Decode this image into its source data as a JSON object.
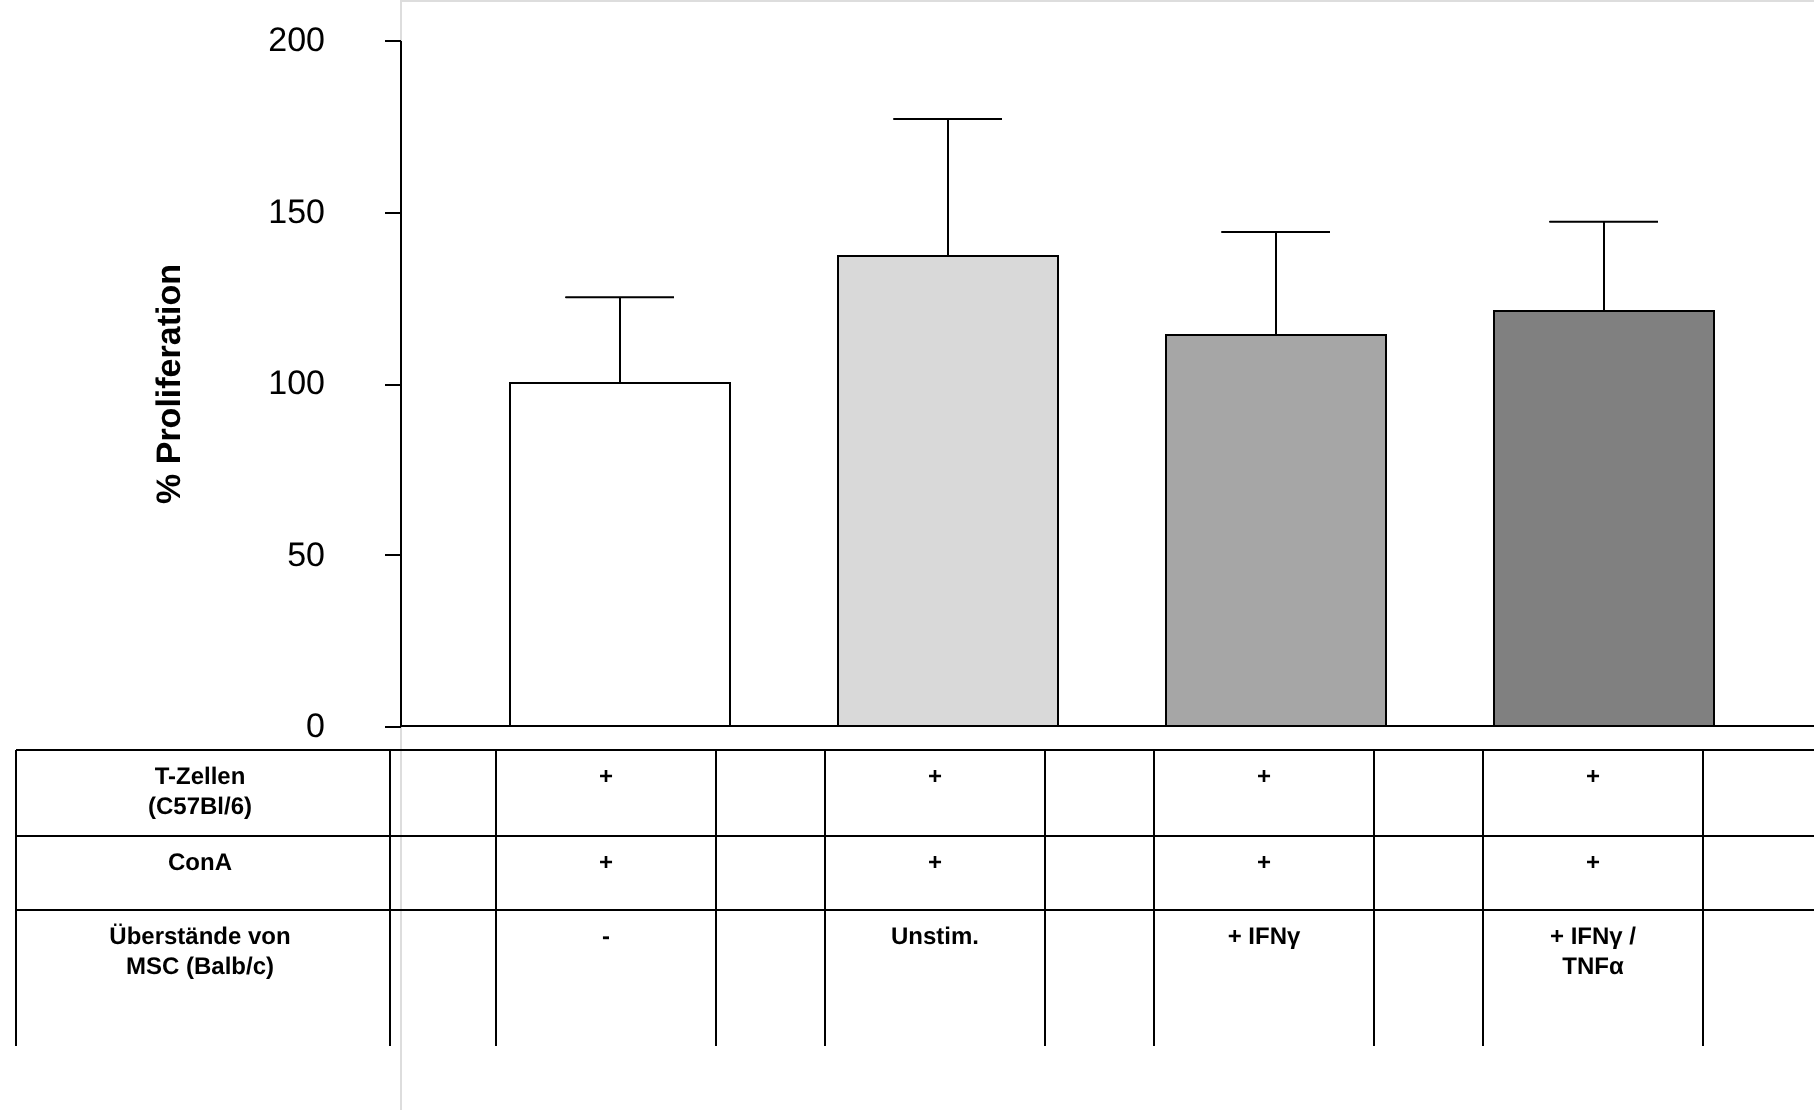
{
  "chart_data": {
    "type": "bar",
    "ylabel": "% Proliferation",
    "categories": [
      null,
      null,
      null,
      null
    ],
    "values": [
      100,
      137,
      114,
      121
    ],
    "colors": [
      "#ffffff",
      "#d9d9d9",
      "#a6a6a6",
      "#808080"
    ],
    "errors": [
      [
        100,
        125
      ],
      [
        137,
        177
      ],
      [
        114,
        144
      ],
      [
        121,
        147
      ]
    ],
    "ylim": [
      0,
      200
    ],
    "yticks": [
      0,
      50,
      100,
      150,
      200
    ],
    "annotations": [
      "T-Zellen (C57Bl/6)",
      "+",
      "+",
      "+",
      "+",
      "ConA",
      "+",
      "+",
      "+",
      "+",
      "Überstände von MSC (Balb/c)",
      "-",
      "Unstim.",
      "+ IFNγ",
      "+ IFNγ / TNFα"
    ],
    "grid": false
  }
}
